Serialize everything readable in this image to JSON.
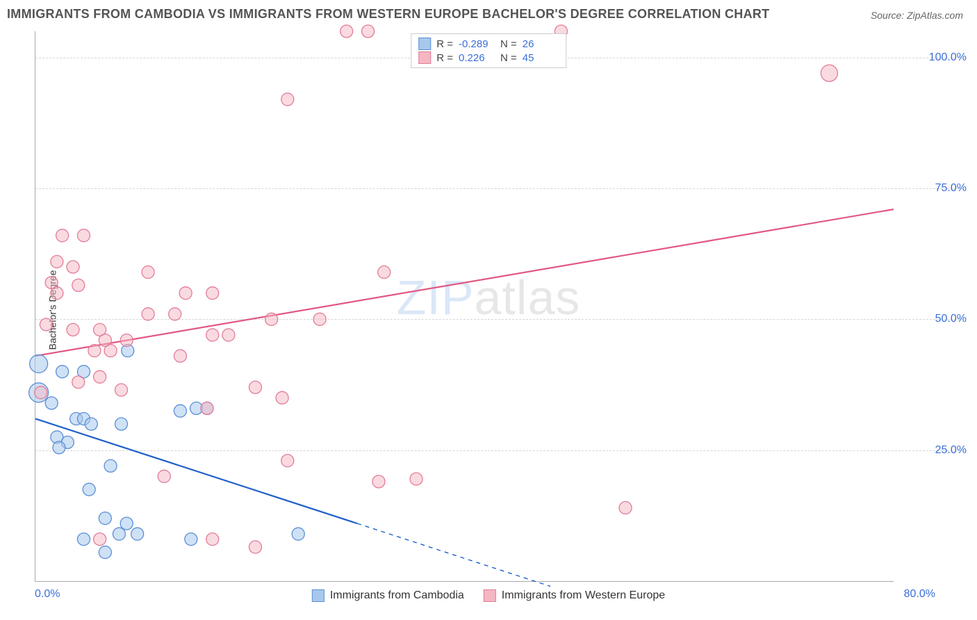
{
  "title": "IMMIGRANTS FROM CAMBODIA VS IMMIGRANTS FROM WESTERN EUROPE BACHELOR'S DEGREE CORRELATION CHART",
  "source": "Source: ZipAtlas.com",
  "ylabel": "Bachelor's Degree",
  "watermark_zip": "ZIP",
  "watermark_atlas": "atlas",
  "chart": {
    "type": "scatter",
    "xlim": [
      0,
      80
    ],
    "ylim": [
      0,
      105
    ],
    "x_ticks": [
      {
        "val": 0,
        "label": "0.0%"
      },
      {
        "val": 80,
        "label": "80.0%"
      }
    ],
    "y_ticks": [
      {
        "val": 25,
        "label": "25.0%"
      },
      {
        "val": 50,
        "label": "50.0%"
      },
      {
        "val": 75,
        "label": "75.0%"
      },
      {
        "val": 100,
        "label": "100.0%"
      }
    ],
    "grid_color": "#d5d5d5",
    "background_color": "#ffffff",
    "series": [
      {
        "name": "Immigrants from Cambodia",
        "fill": "#a7c8ec",
        "stroke": "#5a8fd6",
        "fill_opacity": 0.55,
        "marker_r": 9,
        "trend": {
          "x1": 0,
          "y1": 31,
          "x2": 48,
          "y2": -1,
          "solid_color": "#1f5fc9",
          "dash_until_x": 30,
          "width": 2.2
        },
        "points": [
          {
            "x": 0.3,
            "y": 41.5,
            "r": 13
          },
          {
            "x": 0.3,
            "y": 36,
            "r": 14
          },
          {
            "x": 2.5,
            "y": 40
          },
          {
            "x": 4.5,
            "y": 40
          },
          {
            "x": 8.6,
            "y": 44
          },
          {
            "x": 1.5,
            "y": 34
          },
          {
            "x": 2.0,
            "y": 27.5
          },
          {
            "x": 3.0,
            "y": 26.5
          },
          {
            "x": 2.2,
            "y": 25.5
          },
          {
            "x": 3.8,
            "y": 31
          },
          {
            "x": 4.5,
            "y": 31
          },
          {
            "x": 5.2,
            "y": 30
          },
          {
            "x": 8.0,
            "y": 30
          },
          {
            "x": 13.5,
            "y": 32.5
          },
          {
            "x": 15.0,
            "y": 33
          },
          {
            "x": 16.0,
            "y": 33
          },
          {
            "x": 7.0,
            "y": 22
          },
          {
            "x": 5.0,
            "y": 17.5
          },
          {
            "x": 6.5,
            "y": 12
          },
          {
            "x": 8.5,
            "y": 11
          },
          {
            "x": 4.5,
            "y": 8
          },
          {
            "x": 6.5,
            "y": 5.5
          },
          {
            "x": 7.8,
            "y": 9
          },
          {
            "x": 9.5,
            "y": 9
          },
          {
            "x": 14.5,
            "y": 8
          },
          {
            "x": 24.5,
            "y": 9
          }
        ]
      },
      {
        "name": "Immigrants from Western Europe",
        "fill": "#f5b6c4",
        "stroke": "#e27c97",
        "fill_opacity": 0.5,
        "marker_r": 9,
        "trend": {
          "x1": 0,
          "y1": 43,
          "x2": 80,
          "y2": 71,
          "solid_color": "#e25782",
          "width": 2.2
        },
        "points": [
          {
            "x": 29,
            "y": 105
          },
          {
            "x": 31,
            "y": 105
          },
          {
            "x": 49,
            "y": 105
          },
          {
            "x": 23.5,
            "y": 92
          },
          {
            "x": 74,
            "y": 97,
            "r": 12
          },
          {
            "x": 2.5,
            "y": 66
          },
          {
            "x": 4.5,
            "y": 66
          },
          {
            "x": 2.0,
            "y": 61
          },
          {
            "x": 3.5,
            "y": 60
          },
          {
            "x": 1.5,
            "y": 57
          },
          {
            "x": 2.0,
            "y": 55
          },
          {
            "x": 4.0,
            "y": 56.5
          },
          {
            "x": 10.5,
            "y": 59
          },
          {
            "x": 1.0,
            "y": 49
          },
          {
            "x": 3.5,
            "y": 48
          },
          {
            "x": 6.0,
            "y": 48
          },
          {
            "x": 6.5,
            "y": 46
          },
          {
            "x": 8.5,
            "y": 46
          },
          {
            "x": 10.5,
            "y": 51
          },
          {
            "x": 13.0,
            "y": 51
          },
          {
            "x": 14.0,
            "y": 55
          },
          {
            "x": 16.5,
            "y": 55
          },
          {
            "x": 18.0,
            "y": 47
          },
          {
            "x": 5.5,
            "y": 44
          },
          {
            "x": 7.0,
            "y": 44
          },
          {
            "x": 13.5,
            "y": 43
          },
          {
            "x": 16.5,
            "y": 47
          },
          {
            "x": 22.0,
            "y": 50
          },
          {
            "x": 26.5,
            "y": 50
          },
          {
            "x": 32.5,
            "y": 59
          },
          {
            "x": 6.0,
            "y": 39
          },
          {
            "x": 8.0,
            "y": 36.5
          },
          {
            "x": 0.5,
            "y": 36
          },
          {
            "x": 20.5,
            "y": 37
          },
          {
            "x": 16.0,
            "y": 33
          },
          {
            "x": 23.0,
            "y": 35
          },
          {
            "x": 12.0,
            "y": 20
          },
          {
            "x": 23.5,
            "y": 23
          },
          {
            "x": 32.0,
            "y": 19
          },
          {
            "x": 35.5,
            "y": 19.5
          },
          {
            "x": 55.0,
            "y": 14
          },
          {
            "x": 20.5,
            "y": 6.5
          },
          {
            "x": 16.5,
            "y": 8
          },
          {
            "x": 6.0,
            "y": 8
          },
          {
            "x": 4.0,
            "y": 38
          }
        ]
      }
    ]
  },
  "legend_top": [
    {
      "swatch_fill": "#a7c8ec",
      "swatch_stroke": "#5a8fd6",
      "r_label": "R =",
      "r_val": "-0.289",
      "n_label": "N =",
      "n_val": "26"
    },
    {
      "swatch_fill": "#f5b6c4",
      "swatch_stroke": "#e27c97",
      "r_label": "R =",
      "r_val": "0.226",
      "n_label": "N =",
      "n_val": "45"
    }
  ],
  "legend_bottom": [
    {
      "swatch_fill": "#a7c8ec",
      "swatch_stroke": "#5a8fd6",
      "label": "Immigrants from Cambodia"
    },
    {
      "swatch_fill": "#f5b6c4",
      "swatch_stroke": "#e27c97",
      "label": "Immigrants from Western Europe"
    }
  ]
}
